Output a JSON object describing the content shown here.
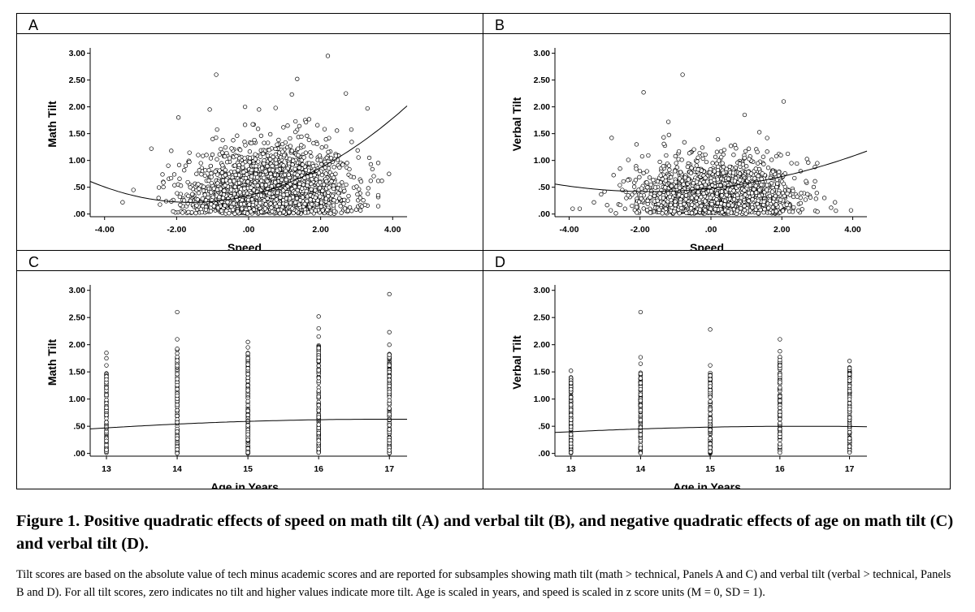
{
  "figure": {
    "caption_title": "Figure 1. Positive quadratic effects of speed on math tilt (A) and verbal tilt (B), and negative quadratic effects of age on math tilt (C) and verbal tilt (D).",
    "caption_note": "Tilt scores are based on the absolute value of tech minus academic scores and are reported for subsamples showing math tilt (math > technical, Panels A and C) and verbal tilt (verbal > technical, Panels B and D). For all tilt scores, zero indicates no tilt and higher values indicate more tilt. Age is scaled in years, and speed is scaled in z score units (M = 0, SD = 1)."
  },
  "chart_data": [
    {
      "panel": "A",
      "type": "scatter",
      "xlabel": "Speed",
      "ylabel": "Math Tilt",
      "xlim": [
        -4.4,
        4.4
      ],
      "ylim": [
        -0.05,
        3.1
      ],
      "xticks": [
        -4,
        -2,
        0,
        2,
        4
      ],
      "xtick_labels": [
        "-4.00",
        "-2.00",
        ".00",
        "2.00",
        "4.00"
      ],
      "yticks": [
        0,
        0.5,
        1,
        1.5,
        2,
        2.5,
        3
      ],
      "ytick_labels": [
        ".00",
        ".50",
        "1.00",
        "1.50",
        "2.00",
        "2.50",
        "3.00"
      ],
      "cloud": {
        "x_mean": 0.6,
        "x_sd": 1.05,
        "y_scale": 0.55,
        "n": 2200,
        "seed": 11
      },
      "points": [
        [
          -0.9,
          2.6
        ],
        [
          1.35,
          2.52
        ],
        [
          2.2,
          2.95
        ],
        [
          -1.95,
          1.8
        ],
        [
          2.7,
          2.25
        ],
        [
          3.3,
          1.97
        ],
        [
          -3.2,
          0.45
        ],
        [
          -3.5,
          0.22
        ],
        [
          -2.7,
          1.22
        ],
        [
          3.7,
          0.62
        ],
        [
          1.2,
          2.23
        ],
        [
          -0.1,
          2.0
        ],
        [
          3.35,
          1.05
        ],
        [
          0.75,
          1.98
        ],
        [
          -2.5,
          0.3
        ],
        [
          3.9,
          0.75
        ]
      ],
      "fit": {
        "a": 0.345,
        "b": 0.16,
        "c": 0.05
      }
    },
    {
      "panel": "B",
      "type": "scatter",
      "xlabel": "Speed",
      "ylabel": "Verbal Tilt",
      "xlim": [
        -4.4,
        4.4
      ],
      "ylim": [
        -0.05,
        3.1
      ],
      "xticks": [
        -4,
        -2,
        0,
        2,
        4
      ],
      "xtick_labels": [
        "-4.00",
        "-2.00",
        ".00",
        "2.00",
        "4.00"
      ],
      "yticks": [
        0,
        0.5,
        1,
        1.5,
        2,
        2.5,
        3
      ],
      "ytick_labels": [
        ".00",
        ".50",
        "1.00",
        "1.50",
        "2.00",
        "2.50",
        "3.00"
      ],
      "cloud": {
        "x_mean": 0.15,
        "x_sd": 1.0,
        "y_scale": 0.45,
        "n": 2000,
        "seed": 23
      },
      "points": [
        [
          -0.8,
          2.6
        ],
        [
          -1.9,
          2.27
        ],
        [
          2.05,
          2.1
        ],
        [
          -3.9,
          0.1
        ],
        [
          -3.7,
          0.1
        ],
        [
          -2.5,
          0.45
        ],
        [
          -3.0,
          0.42
        ],
        [
          3.95,
          0.07
        ],
        [
          -2.1,
          1.3
        ],
        [
          3.2,
          0.3
        ],
        [
          3.5,
          0.22
        ],
        [
          -2.8,
          1.42
        ],
        [
          0.95,
          1.85
        ],
        [
          -1.2,
          1.72
        ],
        [
          3.0,
          0.95
        ]
      ],
      "fit": {
        "a": 0.48,
        "b": 0.07,
        "c": 0.02
      }
    },
    {
      "panel": "C",
      "type": "scatter",
      "xlabel": "Age in Years",
      "ylabel": "Math Tilt",
      "xlim": [
        12.77,
        17.25
      ],
      "ylim": [
        -0.05,
        3.1
      ],
      "xticks": [
        13,
        14,
        15,
        16,
        17
      ],
      "xtick_labels": [
        "13",
        "14",
        "15",
        "16",
        "17"
      ],
      "yticks": [
        0,
        0.5,
        1,
        1.5,
        2,
        2.5,
        3
      ],
      "ytick_labels": [
        ".00",
        ".50",
        "1.00",
        "1.50",
        "2.00",
        "2.50",
        "3.00"
      ],
      "strips": [
        {
          "x": 13,
          "ymax": 1.48,
          "outliers": [
            1.62,
            1.75,
            1.85
          ]
        },
        {
          "x": 14,
          "ymax": 1.95,
          "outliers": [
            2.1,
            2.6
          ]
        },
        {
          "x": 15,
          "ymax": 1.85,
          "outliers": [
            1.95,
            2.05
          ]
        },
        {
          "x": 16,
          "ymax": 2.05,
          "outliers": [
            2.15,
            2.3,
            2.52
          ]
        },
        {
          "x": 17,
          "ymax": 1.85,
          "outliers": [
            2.0,
            2.23,
            2.93
          ]
        }
      ],
      "fit": {
        "x0": 13,
        "y0": 0.47,
        "b": 0.08,
        "c": -0.01
      }
    },
    {
      "panel": "D",
      "type": "scatter",
      "xlabel": "Age in Years",
      "ylabel": "Verbal Tilt",
      "xlim": [
        12.77,
        17.25
      ],
      "ylim": [
        -0.05,
        3.1
      ],
      "xticks": [
        13,
        14,
        15,
        16,
        17
      ],
      "xtick_labels": [
        "13",
        "14",
        "15",
        "16",
        "17"
      ],
      "yticks": [
        0,
        0.5,
        1,
        1.5,
        2,
        2.5,
        3
      ],
      "ytick_labels": [
        ".00",
        ".50",
        "1.00",
        "1.50",
        "2.00",
        "2.50",
        "3.00"
      ],
      "strips": [
        {
          "x": 13,
          "ymax": 1.4,
          "outliers": [
            1.52
          ]
        },
        {
          "x": 14,
          "ymax": 1.5,
          "outliers": [
            1.65,
            1.77,
            2.6
          ]
        },
        {
          "x": 15,
          "ymax": 1.48,
          "outliers": [
            1.62,
            2.28
          ]
        },
        {
          "x": 16,
          "ymax": 1.8,
          "outliers": [
            1.88,
            2.1
          ]
        },
        {
          "x": 17,
          "ymax": 1.6,
          "outliers": [
            1.7
          ]
        }
      ],
      "fit": {
        "x0": 13,
        "y0": 0.4,
        "b": 0.06,
        "c": -0.009
      }
    }
  ]
}
